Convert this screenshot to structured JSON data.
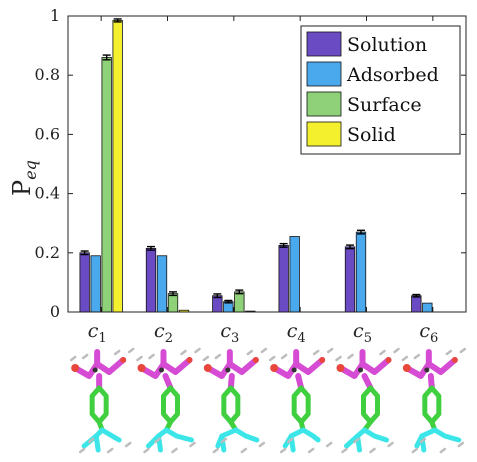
{
  "chart_data": {
    "type": "bar",
    "ylabel_main": "P",
    "ylabel_sub": "eq",
    "ylim": [
      0,
      1
    ],
    "yticks": [
      "0",
      "0.2",
      "0.4",
      "0.6",
      "0.8",
      "1"
    ],
    "categories": [
      {
        "main": "c",
        "sub": "1"
      },
      {
        "main": "c",
        "sub": "2"
      },
      {
        "main": "c",
        "sub": "3"
      },
      {
        "main": "c",
        "sub": "4"
      },
      {
        "main": "c",
        "sub": "5"
      },
      {
        "main": "c",
        "sub": "6"
      }
    ],
    "series": [
      {
        "name": "Solution",
        "color": "#6a4bc4",
        "values": [
          0.2,
          0.215,
          0.055,
          0.225,
          0.22,
          0.055
        ],
        "errors": [
          0.006,
          0.006,
          0.006,
          0.006,
          0.006,
          0.004
        ]
      },
      {
        "name": "Adsorbed",
        "color": "#4aa8ec",
        "values": [
          0.19,
          0.19,
          0.035,
          0.255,
          0.27,
          0.03
        ],
        "errors": [
          0.0,
          0.0,
          0.004,
          0.0,
          0.006,
          0.0
        ]
      },
      {
        "name": "Surface",
        "color": "#8fd178",
        "values": [
          0.86,
          0.062,
          0.068,
          0.0,
          0.0,
          0.0
        ],
        "errors": [
          0.008,
          0.006,
          0.006,
          0.0,
          0.0,
          0.0
        ]
      },
      {
        "name": "Solid",
        "color": "#f5f02e",
        "values": [
          0.985,
          0.006,
          0.003,
          0.0,
          0.0,
          0.0
        ],
        "errors": [
          0.005,
          0.0,
          0.0,
          0.0,
          0.0,
          0.0
        ]
      }
    ],
    "legend_position": "top-right",
    "grid": false
  },
  "molecule_icons": [
    "molecule-structure-icon"
  ]
}
